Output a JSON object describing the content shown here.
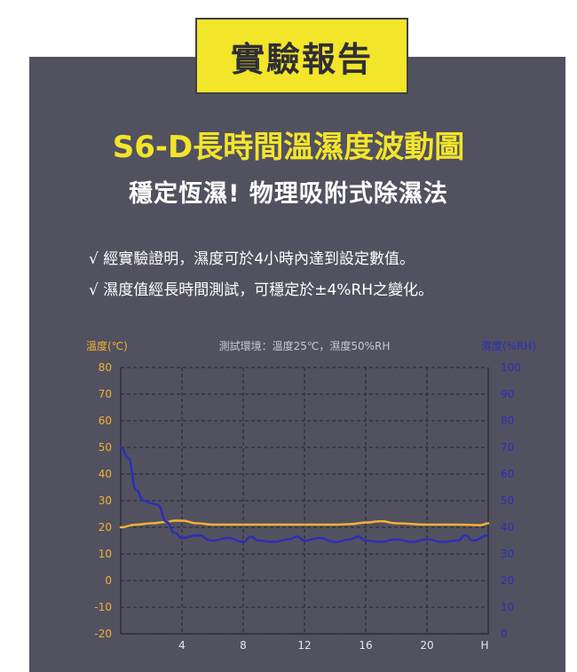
{
  "header": {
    "badge": "實驗報告",
    "title": "S6-D長時間溫濕度波動圖",
    "subtitle": "穩定恆濕! 物理吸附式除濕法"
  },
  "bullets": [
    "√ 經實驗證明，濕度可於4小時內達到設定數值。",
    "√ 濕度值經長時間測試，可穩定於±4%RH之變化。"
  ],
  "colors": {
    "panel": "#525160",
    "accent_yellow": "#f3e52a",
    "temperature": "#f2b233",
    "humidity": "#2a2fb5",
    "grid": "#2e2d36"
  },
  "chart_data": {
    "type": "line",
    "title": "測試環境：溫度25℃，濕度50%RH",
    "xlabel": "H",
    "ylabel_left": "溫度(℃)",
    "ylabel_right": "濕度(%RH)",
    "xlim": [
      0,
      24
    ],
    "ylim_left": [
      -20,
      80
    ],
    "ylim_right": [
      0,
      100
    ],
    "x_ticks": [
      4,
      8,
      12,
      16,
      20
    ],
    "x_end_label": "H",
    "y_left_ticks": [
      80,
      70,
      60,
      50,
      40,
      30,
      20,
      10,
      0,
      -10,
      -20
    ],
    "y_right_ticks": [
      100,
      90,
      80,
      70,
      60,
      50,
      40,
      30,
      20,
      10,
      0
    ],
    "grid": true,
    "series": [
      {
        "name": "溫度(℃)",
        "axis": "left",
        "x": [
          0,
          1,
          2,
          3,
          3.5,
          4,
          5,
          6,
          8,
          10,
          12,
          14,
          15,
          16,
          17,
          18,
          20,
          22,
          23.5,
          24
        ],
        "values": [
          20,
          21,
          21.5,
          22,
          22.5,
          22.5,
          21.5,
          21,
          21,
          21,
          21,
          21,
          21.2,
          21.8,
          22.3,
          21.5,
          21,
          21,
          20.8,
          21.5
        ]
      },
      {
        "name": "濕度(%RH)",
        "axis": "right",
        "x": [
          0,
          0.5,
          1,
          1.5,
          2,
          2.4,
          3,
          3.5,
          4,
          5,
          6,
          7,
          8,
          8.5,
          9,
          10,
          11,
          11.5,
          12,
          13,
          14,
          15,
          15.5,
          16,
          17,
          18,
          19,
          20,
          21,
          22,
          22.5,
          23,
          24
        ],
        "values": [
          70,
          66,
          54,
          50,
          49,
          48.5,
          42,
          38,
          36,
          37,
          35,
          36,
          34.5,
          36.5,
          35,
          34.5,
          35.5,
          36.5,
          35,
          36,
          34.5,
          35.5,
          36.5,
          35,
          34.5,
          35.5,
          34.5,
          35.5,
          34.5,
          35,
          37,
          35,
          37
        ]
      }
    ]
  }
}
